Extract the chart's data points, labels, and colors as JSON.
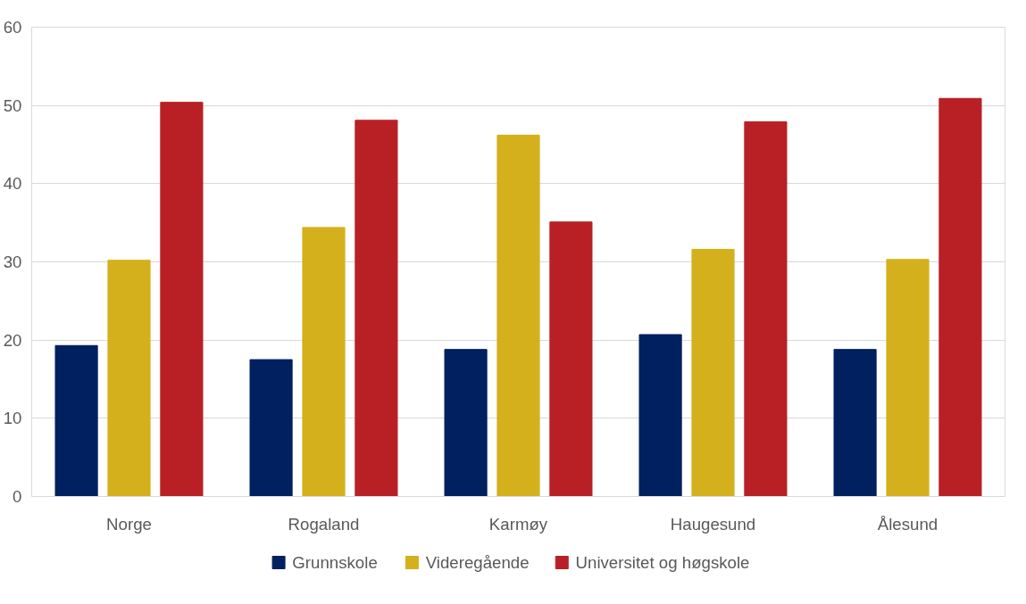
{
  "chart_data": {
    "type": "bar",
    "categories": [
      "Norge",
      "Rogaland",
      "Karmøy",
      "Haugesund",
      "Ålesund"
    ],
    "series": [
      {
        "name": "Grunnskole",
        "color": "#002060",
        "values": [
          19.3,
          17.5,
          18.8,
          20.7,
          18.8
        ]
      },
      {
        "name": "Videregående",
        "color": "#d4b01c",
        "values": [
          30.2,
          34.4,
          46.2,
          31.6,
          30.3
        ]
      },
      {
        "name": "Universitet og høgskole",
        "color": "#b82025",
        "values": [
          50.4,
          48.1,
          35.1,
          47.9,
          50.9
        ]
      }
    ],
    "ylim": [
      0,
      60
    ],
    "yticks": [
      0,
      10,
      20,
      30,
      40,
      50,
      60
    ],
    "grid": "y",
    "legend": "bottom"
  }
}
